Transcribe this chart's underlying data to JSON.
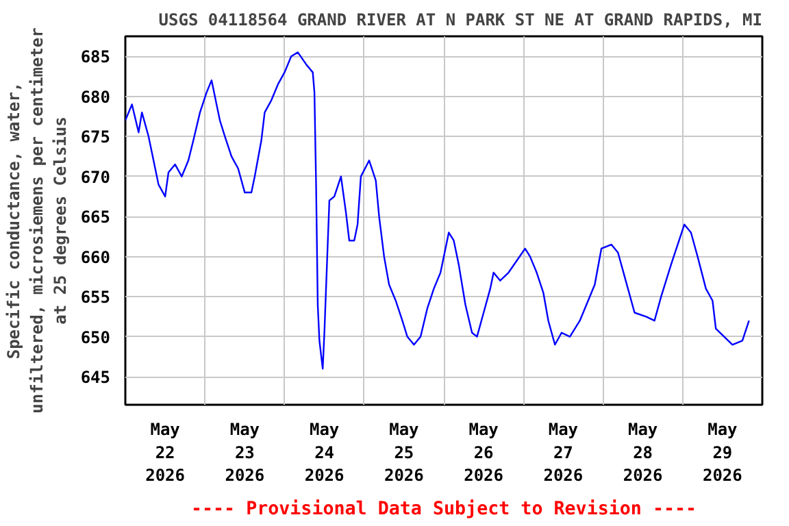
{
  "chart_data": {
    "type": "line",
    "title": "USGS 04118564 GRAND RIVER AT N PARK ST NE AT GRAND RAPIDS, MI",
    "ylabel": "Specific conductance, water,\nunfiltered, microsiemens per centimeter\nat 25 degrees Celsius",
    "annotations": [
      "---- Provisional Data Subject to Revision ----"
    ],
    "x": [
      "2026-05-22T00:00",
      "2026-05-22T02:00",
      "2026-05-22T04:00",
      "2026-05-22T05:00",
      "2026-05-22T07:00",
      "2026-05-22T08:30",
      "2026-05-22T10:00",
      "2026-05-22T12:00",
      "2026-05-22T13:00",
      "2026-05-22T15:00",
      "2026-05-22T17:00",
      "2026-05-22T19:00",
      "2026-05-22T20:30",
      "2026-05-22T22:30",
      "2026-05-23T00:30",
      "2026-05-23T02:00",
      "2026-05-23T03:30",
      "2026-05-23T04:30",
      "2026-05-23T06:00",
      "2026-05-23T08:00",
      "2026-05-23T10:00",
      "2026-05-23T12:00",
      "2026-05-23T14:00",
      "2026-05-23T15:00",
      "2026-05-23T17:00",
      "2026-05-23T18:00",
      "2026-05-23T20:00",
      "2026-05-23T22:00",
      "2026-05-24T00:00",
      "2026-05-24T02:00",
      "2026-05-24T04:00",
      "2026-05-24T06:30",
      "2026-05-24T08:30",
      "2026-05-24T09:00",
      "2026-05-24T09:30",
      "2026-05-24T10:00",
      "2026-05-24T10:30",
      "2026-05-24T11:30",
      "2026-05-24T12:00",
      "2026-05-24T12:30",
      "2026-05-24T13:30",
      "2026-05-24T15:00",
      "2026-05-24T17:00",
      "2026-05-24T18:30",
      "2026-05-24T19:30",
      "2026-05-24T21:00",
      "2026-05-24T22:00",
      "2026-05-24T23:00",
      "2026-05-25T01:30",
      "2026-05-25T03:30",
      "2026-05-25T04:30",
      "2026-05-25T06:00",
      "2026-05-25T07:30",
      "2026-05-25T09:30",
      "2026-05-25T11:30",
      "2026-05-25T13:00",
      "2026-05-25T15:00",
      "2026-05-25T17:00",
      "2026-05-25T19:00",
      "2026-05-25T21:00",
      "2026-05-25T23:00",
      "2026-05-26T00:30",
      "2026-05-26T01:30",
      "2026-05-26T03:00",
      "2026-05-26T04:30",
      "2026-05-26T06:30",
      "2026-05-26T08:30",
      "2026-05-26T10:00",
      "2026-05-26T12:00",
      "2026-05-26T14:00",
      "2026-05-26T15:00",
      "2026-05-26T17:00",
      "2026-05-26T19:30",
      "2026-05-26T22:00",
      "2026-05-27T00:30",
      "2026-05-27T02:00",
      "2026-05-27T04:00",
      "2026-05-27T06:00",
      "2026-05-27T07:30",
      "2026-05-27T09:30",
      "2026-05-27T11:30",
      "2026-05-27T14:00",
      "2026-05-27T17:00",
      "2026-05-27T19:30",
      "2026-05-27T21:30",
      "2026-05-27T23:30",
      "2026-05-28T02:30",
      "2026-05-28T04:30",
      "2026-05-28T06:30",
      "2026-05-28T09:30",
      "2026-05-28T13:00",
      "2026-05-28T15:30",
      "2026-05-28T17:30",
      "2026-05-28T20:30",
      "2026-05-28T22:30",
      "2026-05-29T00:30",
      "2026-05-29T02:30",
      "2026-05-29T04:30",
      "2026-05-29T07:00",
      "2026-05-29T09:00",
      "2026-05-29T10:00",
      "2026-05-29T12:30",
      "2026-05-29T15:00",
      "2026-05-29T18:00",
      "2026-05-29T20:00"
    ],
    "series": [
      {
        "color": "#0000ff",
        "values": [
          677,
          679,
          675.5,
          678,
          675,
          672,
          669,
          667.5,
          670.5,
          671.5,
          670,
          672,
          674.5,
          678,
          680.5,
          682,
          679,
          677,
          675,
          672.5,
          671,
          668,
          668,
          670,
          674.5,
          678,
          679.5,
          681.5,
          683,
          685,
          685.5,
          684,
          683,
          680.5,
          669,
          654,
          649.5,
          646,
          650.5,
          656,
          667,
          667.5,
          670,
          665.5,
          662,
          662,
          664,
          670,
          672,
          669.5,
          665,
          660,
          656.5,
          654.5,
          652,
          650,
          649,
          650,
          653.5,
          656,
          658,
          661,
          663,
          662,
          659,
          654,
          650.5,
          650,
          653,
          656,
          658,
          657,
          658,
          659.5,
          661,
          660,
          658,
          655.5,
          652,
          649,
          650.5,
          650,
          652,
          654.5,
          656.5,
          661,
          661.5,
          660.5,
          657.5,
          653,
          652.5,
          652,
          655,
          659,
          661.5,
          664,
          663,
          660,
          656,
          654.5,
          651,
          650,
          649,
          649.5,
          652
        ]
      }
    ],
    "xlim": [
      "2026-05-22T00:00",
      "2026-05-30T00:00"
    ],
    "xticks": [
      {
        "value": "2026-05-22T00:00",
        "label": null
      },
      {
        "value": "2026-05-22T12:00",
        "label": "May\n22\n2026"
      },
      {
        "value": "2026-05-23T00:00",
        "label": null
      },
      {
        "value": "2026-05-23T12:00",
        "label": "May\n23\n2026"
      },
      {
        "value": "2026-05-24T00:00",
        "label": null
      },
      {
        "value": "2026-05-24T12:00",
        "label": "May\n24\n2026"
      },
      {
        "value": "2026-05-25T00:00",
        "label": null
      },
      {
        "value": "2026-05-25T12:00",
        "label": "May\n25\n2026"
      },
      {
        "value": "2026-05-26T00:00",
        "label": null
      },
      {
        "value": "2026-05-26T12:00",
        "label": "May\n26\n2026"
      },
      {
        "value": "2026-05-27T00:00",
        "label": null
      },
      {
        "value": "2026-05-27T12:00",
        "label": "May\n27\n2026"
      },
      {
        "value": "2026-05-28T00:00",
        "label": null
      },
      {
        "value": "2026-05-28T12:00",
        "label": "May\n28\n2026"
      },
      {
        "value": "2026-05-29T00:00",
        "label": null
      },
      {
        "value": "2026-05-29T12:00",
        "label": "May\n29\n2026"
      },
      {
        "value": "2026-05-30T00:00",
        "label": null
      }
    ],
    "ylim": [
      641.5,
      687.5
    ],
    "yticks": [
      645,
      650,
      655,
      660,
      665,
      670,
      675,
      680,
      685
    ],
    "grid": true,
    "marker": "none",
    "line_style": "solid"
  }
}
